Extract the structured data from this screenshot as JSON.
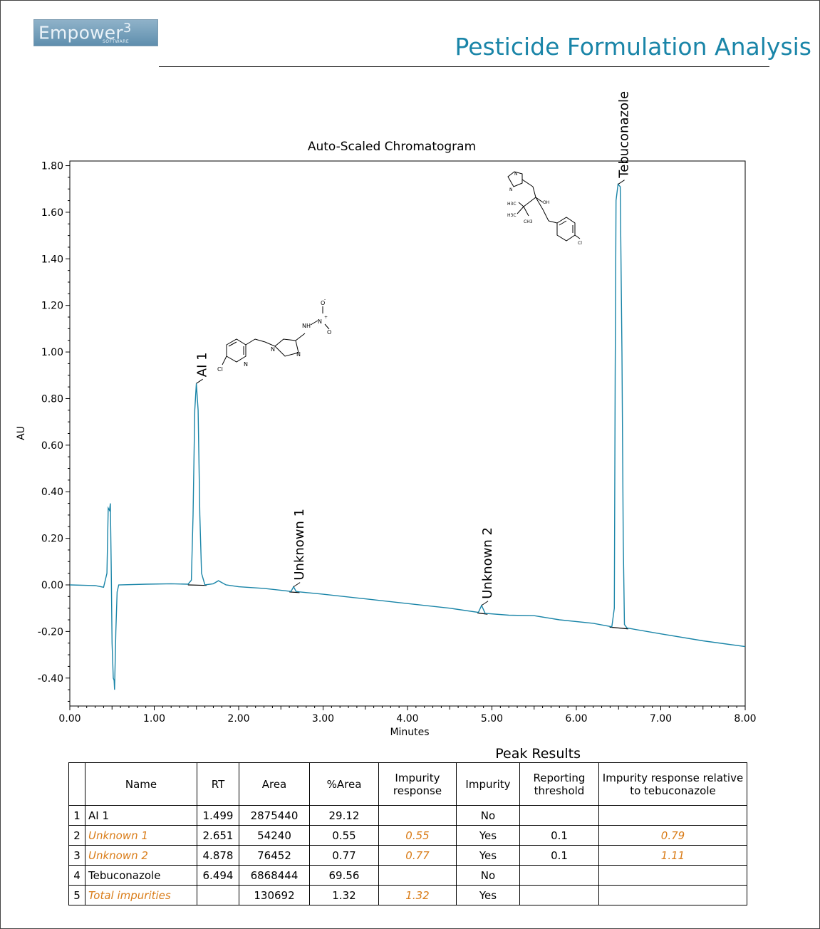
{
  "header": {
    "logo_text": "Empower",
    "logo_mark": "3",
    "logo_sub": "SOFTWARE",
    "title": "Pesticide Formulation Analysis"
  },
  "colors": {
    "trace": "#1a85a8",
    "title": "#1a85a8",
    "impurity": "#d97c18"
  },
  "chart_data": {
    "type": "line",
    "title": "Auto-Scaled Chromatogram",
    "xlabel": "Minutes",
    "ylabel": "AU",
    "xlim": [
      0,
      8
    ],
    "ylim": [
      -0.52,
      1.82
    ],
    "x_ticks": [
      "0.00",
      "1.00",
      "2.00",
      "3.00",
      "4.00",
      "5.00",
      "6.00",
      "7.00",
      "8.00"
    ],
    "y_ticks": [
      "-0.40",
      "-0.20",
      "0.00",
      "0.20",
      "0.40",
      "0.60",
      "0.80",
      "1.00",
      "1.20",
      "1.40",
      "1.60",
      "1.80"
    ],
    "grid": false,
    "series": [
      {
        "points": [
          [
            0,
            0.0
          ],
          [
            0.3,
            -0.003
          ],
          [
            0.4,
            -0.01
          ],
          [
            0.44,
            0.05
          ],
          [
            0.455,
            0.33
          ],
          [
            0.47,
            0.32
          ],
          [
            0.48,
            0.35
          ],
          [
            0.49,
            0.08
          ],
          [
            0.5,
            -0.25
          ],
          [
            0.515,
            -0.4
          ],
          [
            0.525,
            -0.41
          ],
          [
            0.53,
            -0.45
          ],
          [
            0.545,
            -0.2
          ],
          [
            0.56,
            -0.03
          ],
          [
            0.58,
            0.0
          ],
          [
            0.9,
            0.003
          ],
          [
            1.2,
            0.005
          ],
          [
            1.4,
            0.003
          ],
          [
            1.44,
            0.02
          ],
          [
            1.46,
            0.3
          ],
          [
            1.48,
            0.75
          ],
          [
            1.499,
            0.865
          ],
          [
            1.52,
            0.75
          ],
          [
            1.54,
            0.3
          ],
          [
            1.56,
            0.05
          ],
          [
            1.6,
            0.0
          ],
          [
            1.7,
            0.005
          ],
          [
            1.76,
            0.018
          ],
          [
            1.85,
            0.0
          ],
          [
            2.0,
            -0.008
          ],
          [
            2.3,
            -0.015
          ],
          [
            2.55,
            -0.025
          ],
          [
            2.62,
            -0.028
          ],
          [
            2.651,
            -0.008
          ],
          [
            2.68,
            -0.028
          ],
          [
            2.72,
            -0.03
          ],
          [
            3.0,
            -0.04
          ],
          [
            3.5,
            -0.06
          ],
          [
            4.0,
            -0.08
          ],
          [
            4.5,
            -0.1
          ],
          [
            4.84,
            -0.118
          ],
          [
            4.878,
            -0.088
          ],
          [
            4.92,
            -0.122
          ],
          [
            5.2,
            -0.13
          ],
          [
            5.5,
            -0.132
          ],
          [
            5.8,
            -0.15
          ],
          [
            6.2,
            -0.165
          ],
          [
            6.42,
            -0.18
          ],
          [
            6.45,
            -0.1
          ],
          [
            6.46,
            0.9
          ],
          [
            6.47,
            1.65
          ],
          [
            6.494,
            1.72
          ],
          [
            6.52,
            1.71
          ],
          [
            6.54,
            1.0
          ],
          [
            6.555,
            0.2
          ],
          [
            6.57,
            -0.17
          ],
          [
            6.6,
            -0.185
          ],
          [
            7.0,
            -0.21
          ],
          [
            7.5,
            -0.24
          ],
          [
            8.0,
            -0.265
          ]
        ]
      }
    ],
    "peaks": [
      {
        "name": "AI 1",
        "rt": 1.499
      },
      {
        "name": "Unknown 1",
        "rt": 2.651
      },
      {
        "name": "Unknown 2",
        "rt": 4.878
      },
      {
        "name": "Tebuconazole",
        "rt": 6.494
      }
    ]
  },
  "structures": {
    "ai1": {
      "atoms": [
        "Cl",
        "N",
        "N",
        "N",
        "NH",
        "N",
        "O",
        "O"
      ],
      "charges": [
        "+",
        "-"
      ]
    },
    "tebuconazole": {
      "atoms": [
        "N",
        "N",
        "OH",
        "H3C",
        "H3C",
        "CH3",
        "Cl"
      ]
    }
  },
  "table": {
    "title": "Peak Results",
    "headers": [
      "",
      "Name",
      "RT",
      "Area",
      "%Area",
      "Impurity response",
      "Impurity",
      "Reporting threshold",
      "Impurity response relative to tebuconazole"
    ],
    "rows": [
      {
        "idx": "1",
        "name": "AI 1",
        "rt": "1.499",
        "area": "2875440",
        "pct": "29.12",
        "imp_resp": "",
        "impurity": "No",
        "threshold": "",
        "rel": "",
        "is_impurity": false
      },
      {
        "idx": "2",
        "name": "Unknown 1",
        "rt": "2.651",
        "area": "54240",
        "pct": "0.55",
        "imp_resp": "0.55",
        "impurity": "Yes",
        "threshold": "0.1",
        "rel": "0.79",
        "is_impurity": true
      },
      {
        "idx": "3",
        "name": "Unknown 2",
        "rt": "4.878",
        "area": "76452",
        "pct": "0.77",
        "imp_resp": "0.77",
        "impurity": "Yes",
        "threshold": "0.1",
        "rel": "1.11",
        "is_impurity": true
      },
      {
        "idx": "4",
        "name": "Tebuconazole",
        "rt": "6.494",
        "area": "6868444",
        "pct": "69.56",
        "imp_resp": "",
        "impurity": "No",
        "threshold": "",
        "rel": "",
        "is_impurity": false
      },
      {
        "idx": "5",
        "name": "Total impurities",
        "rt": "",
        "area": "130692",
        "pct": "1.32",
        "imp_resp": "1.32",
        "impurity": "Yes",
        "threshold": "",
        "rel": "",
        "is_impurity": true
      }
    ]
  }
}
